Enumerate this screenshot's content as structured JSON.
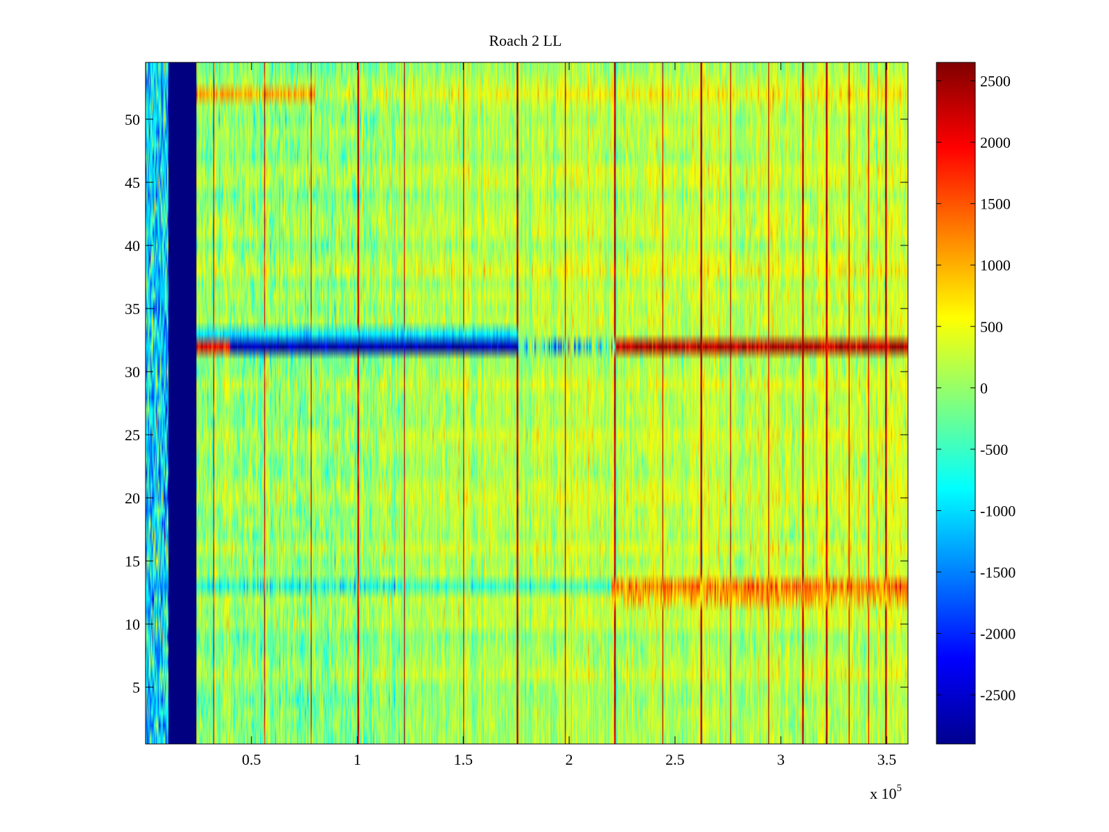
{
  "chart_data": {
    "type": "heatmap",
    "title": "Roach 2 LL",
    "xlabel": "",
    "ylabel": "",
    "x_exponent_label": "x 10",
    "x_exponent_power": "5",
    "xlim": [
      0,
      360000
    ],
    "ylim": [
      0.5,
      54.5
    ],
    "x_ticks": [
      {
        "value": 50000,
        "label": "0.5"
      },
      {
        "value": 100000,
        "label": "1"
      },
      {
        "value": 150000,
        "label": "1.5"
      },
      {
        "value": 200000,
        "label": "2"
      },
      {
        "value": 250000,
        "label": "2.5"
      },
      {
        "value": 300000,
        "label": "3"
      },
      {
        "value": 350000,
        "label": "3.5"
      }
    ],
    "y_ticks": [
      {
        "value": 5,
        "label": "5"
      },
      {
        "value": 10,
        "label": "10"
      },
      {
        "value": 15,
        "label": "15"
      },
      {
        "value": 20,
        "label": "20"
      },
      {
        "value": 25,
        "label": "25"
      },
      {
        "value": 30,
        "label": "30"
      },
      {
        "value": 35,
        "label": "35"
      },
      {
        "value": 40,
        "label": "40"
      },
      {
        "value": 45,
        "label": "45"
      },
      {
        "value": 50,
        "label": "50"
      }
    ],
    "colorbar": {
      "colormap": "jet",
      "clim": [
        -2900,
        2650
      ],
      "ticks": [
        {
          "value": 2500,
          "label": "2500"
        },
        {
          "value": 2000,
          "label": "2000"
        },
        {
          "value": 1500,
          "label": "1500"
        },
        {
          "value": 1000,
          "label": "1000"
        },
        {
          "value": 500,
          "label": "500"
        },
        {
          "value": 0,
          "label": "0"
        },
        {
          "value": -500,
          "label": "-500"
        },
        {
          "value": -1000,
          "label": "-1000"
        },
        {
          "value": -1500,
          "label": "-1500"
        },
        {
          "value": -2000,
          "label": "-2000"
        },
        {
          "value": -2500,
          "label": "-2500"
        }
      ]
    },
    "rows": 54,
    "base_level": 50,
    "features": {
      "low_band_x": [
        11000,
        24000
      ],
      "low_band_value": -2900,
      "row_32_negative_x": [
        40000,
        176000
      ],
      "row_32_negative_value": -2600,
      "row_32_positive_x": [
        222000,
        360000
      ],
      "row_32_positive_value": 2350,
      "row_13_positive_x": [
        220000,
        360000
      ],
      "row_13_positive_value": 1300,
      "spike_columns_x": [
        32000,
        56000,
        78000,
        100000,
        122000,
        150000,
        175000,
        198000,
        221000,
        244000,
        262000,
        276000,
        294000,
        310000,
        321000,
        332000,
        341000,
        349000
      ]
    }
  }
}
